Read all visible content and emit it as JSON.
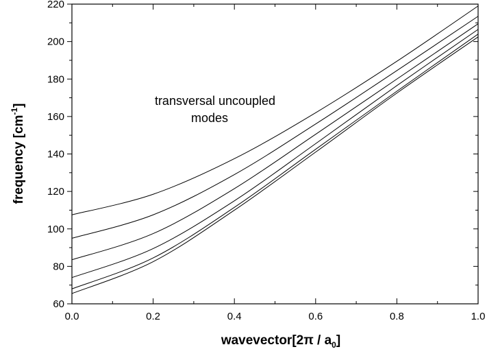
{
  "chart_data": {
    "type": "line",
    "xlabel": {
      "main": "wavevector[2",
      "pi": "π",
      "slash": " / a",
      "sub": "0",
      "end": "]"
    },
    "ylabel": {
      "main": "frequency [cm",
      "sup": "-1",
      "end": "]"
    },
    "annotation": [
      "transversal uncoupled",
      "modes"
    ],
    "xlim": [
      0.0,
      1.0
    ],
    "ylim": [
      60,
      220
    ],
    "x_ticks": [
      "0.0",
      "0.2",
      "0.4",
      "0.6",
      "0.8",
      "1.0"
    ],
    "y_ticks": [
      "60",
      "80",
      "100",
      "120",
      "140",
      "160",
      "180",
      "200",
      "220"
    ],
    "grid": false,
    "series": [
      {
        "x": [
          0.0,
          0.2,
          0.4,
          0.6,
          0.8,
          1.0
        ],
        "values": [
          107.5,
          118.5,
          137.5,
          162.0,
          189.5,
          219.0
        ]
      },
      {
        "x": [
          0.0,
          0.2,
          0.4,
          0.6,
          0.8,
          1.0
        ],
        "values": [
          95.0,
          107.5,
          129.0,
          156.0,
          184.5,
          213.5
        ]
      },
      {
        "x": [
          0.0,
          0.2,
          0.4,
          0.6,
          0.8,
          1.0
        ],
        "values": [
          83.5,
          97.5,
          121.5,
          150.5,
          180.0,
          209.5
        ]
      },
      {
        "x": [
          0.0,
          0.2,
          0.4,
          0.6,
          0.8,
          1.0
        ],
        "values": [
          74.0,
          89.5,
          115.0,
          145.5,
          176.5,
          206.5
        ]
      },
      {
        "x": [
          0.0,
          0.2,
          0.4,
          0.6,
          0.8,
          1.0
        ],
        "values": [
          68.0,
          84.5,
          111.5,
          142.5,
          173.5,
          204.0
        ]
      },
      {
        "x": [
          0.0,
          0.2,
          0.4,
          0.6,
          0.8,
          1.0
        ],
        "values": [
          65.5,
          82.5,
          110.0,
          141.0,
          172.5,
          202.5
        ]
      }
    ]
  }
}
